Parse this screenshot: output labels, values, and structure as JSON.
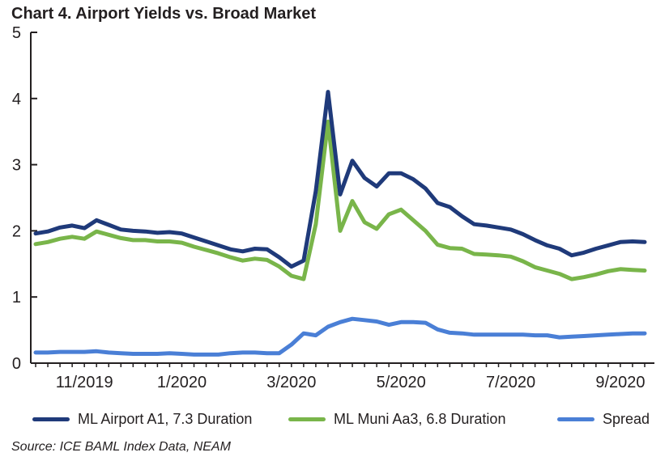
{
  "chart_data": {
    "type": "line",
    "title": "Chart 4. Airport Yields vs. Broad Market",
    "xlabel": "",
    "ylabel": "",
    "ylim": [
      0,
      5
    ],
    "yticks": [
      0,
      1,
      2,
      3,
      4,
      5
    ],
    "x_tick_labels": [
      {
        "label": "11/2019",
        "index": 4
      },
      {
        "label": "1/2020",
        "index": 12
      },
      {
        "label": "3/2020",
        "index": 21
      },
      {
        "label": "5/2020",
        "index": 30
      },
      {
        "label": "7/2020",
        "index": 39
      },
      {
        "label": "9/2020",
        "index": 48
      }
    ],
    "x_count": 51,
    "series": [
      {
        "name": "ML Airport A1, 7.3 Duration",
        "color": "#1f3a7a",
        "values": [
          1.96,
          1.99,
          2.05,
          2.08,
          2.04,
          2.16,
          2.09,
          2.02,
          2.0,
          1.99,
          1.97,
          1.98,
          1.96,
          1.9,
          1.84,
          1.78,
          1.72,
          1.69,
          1.73,
          1.72,
          1.6,
          1.46,
          1.55,
          2.6,
          4.1,
          2.55,
          3.06,
          2.8,
          2.67,
          2.87,
          2.87,
          2.78,
          2.64,
          2.42,
          2.36,
          2.22,
          2.1,
          2.08,
          2.05,
          2.02,
          1.95,
          1.86,
          1.78,
          1.73,
          1.63,
          1.67,
          1.73,
          1.78,
          1.83,
          1.84,
          1.83
        ]
      },
      {
        "name": "ML Muni Aa3, 6.8 Duration",
        "color": "#79b54a",
        "values": [
          1.8,
          1.83,
          1.88,
          1.91,
          1.88,
          1.99,
          1.94,
          1.89,
          1.86,
          1.86,
          1.84,
          1.84,
          1.82,
          1.76,
          1.71,
          1.66,
          1.6,
          1.55,
          1.58,
          1.56,
          1.46,
          1.32,
          1.27,
          2.1,
          3.65,
          2.0,
          2.45,
          2.13,
          2.03,
          2.25,
          2.32,
          2.16,
          2.0,
          1.79,
          1.74,
          1.73,
          1.65,
          1.64,
          1.63,
          1.61,
          1.54,
          1.45,
          1.4,
          1.35,
          1.27,
          1.3,
          1.34,
          1.39,
          1.42,
          1.41,
          1.4
        ]
      },
      {
        "name": "Spread",
        "color": "#4a7fd6",
        "values": [
          0.16,
          0.16,
          0.17,
          0.17,
          0.17,
          0.18,
          0.16,
          0.15,
          0.14,
          0.14,
          0.14,
          0.15,
          0.14,
          0.13,
          0.13,
          0.13,
          0.15,
          0.16,
          0.16,
          0.15,
          0.15,
          0.28,
          0.45,
          0.42,
          0.55,
          0.62,
          0.67,
          0.65,
          0.63,
          0.58,
          0.62,
          0.62,
          0.61,
          0.51,
          0.46,
          0.45,
          0.43,
          0.43,
          0.43,
          0.43,
          0.43,
          0.42,
          0.42,
          0.39,
          0.4,
          0.41,
          0.42,
          0.43,
          0.44,
          0.45,
          0.45
        ]
      }
    ],
    "source": "Source: ICE BAML Index Data, NEAM"
  },
  "legend_labels": [
    "ML Airport A1, 7.3 Duration",
    "ML Muni Aa3, 6.8 Duration",
    "Spread"
  ]
}
